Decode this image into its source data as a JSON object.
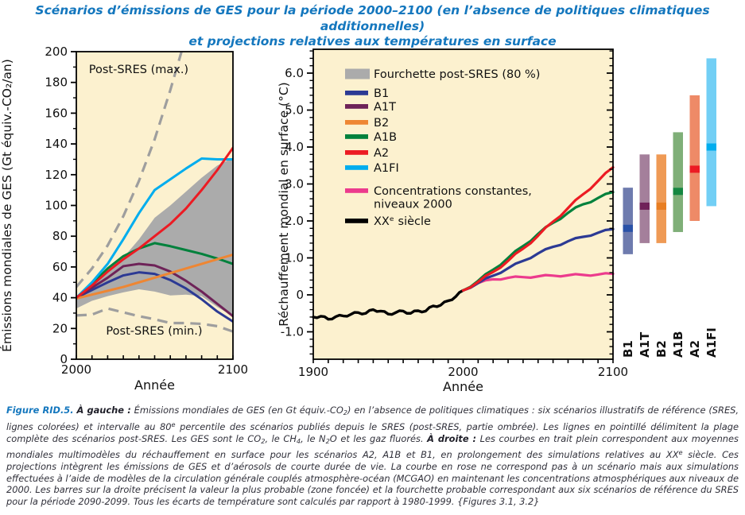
{
  "title": {
    "line1": "Scénarios d’émissions de GES pour la période 2000–2100 (en l’absence de politiques climatiques additionnelles)",
    "line2": "et projections relatives aux températures en surface"
  },
  "colors": {
    "title_blue": "#1477BE",
    "plot_background": "#FCF1CF",
    "band_gray": "#ABABAB",
    "dash_gray": "#9E9E9E",
    "b1": "#2C3A94",
    "a1t": "#6E2358",
    "b2": "#EE8633",
    "a1b": "#00813C",
    "a2": "#EC1B23",
    "a1fi": "#00ADEE",
    "pink": "#EC3B8D",
    "black": "#000000"
  },
  "chart_data": [
    {
      "id": "emissions",
      "type": "line",
      "xlabel": "Année",
      "ylabel": "Émissions mondiales de GES (Gt équiv.-CO₂/an)",
      "xlim": [
        2000,
        2100
      ],
      "ylim": [
        0,
        200
      ],
      "ytick_step": 20,
      "ytick_minor": 10,
      "xtick_minor": 10,
      "xtick_labels": [
        "2000",
        "2100"
      ],
      "x": [
        2000,
        2010,
        2020,
        2030,
        2040,
        2050,
        2060,
        2070,
        2080,
        2090,
        2100
      ],
      "band": {
        "name": "Fourchette post-SRES (80 %)",
        "color": "#ABABAB",
        "upper": [
          41,
          47.5,
          56,
          66,
          78,
          92,
          100,
          109,
          118,
          126,
          131
        ],
        "lower": [
          33,
          38,
          41,
          43.5,
          45.5,
          44,
          41.5,
          42,
          41,
          34,
          28
        ]
      },
      "series": [
        {
          "name": "Post-SRES (max.)",
          "color": "#9E9E9E",
          "dash": true,
          "x": [
            2000,
            2010,
            2020,
            2030,
            2040,
            2050,
            2060,
            2070
          ],
          "values": [
            47,
            59,
            74,
            93,
            116,
            143,
            175,
            210
          ]
        },
        {
          "name": "Post-SRES (min.)",
          "color": "#9E9E9E",
          "dash": true,
          "values": [
            28.5,
            29,
            33,
            30.5,
            28,
            26,
            23.5,
            23.5,
            23,
            21.5,
            18
          ]
        },
        {
          "name": "B1",
          "color": "#2C3A94",
          "values": [
            40,
            45,
            50,
            54.5,
            56.5,
            55.5,
            51.5,
            46,
            39,
            31,
            24.5
          ]
        },
        {
          "name": "A1T",
          "color": "#6E2358",
          "values": [
            40,
            46.5,
            53,
            60.5,
            62,
            61,
            57,
            51,
            44,
            36,
            28
          ]
        },
        {
          "name": "A1B",
          "color": "#00813C",
          "values": [
            40,
            49,
            59,
            67,
            72,
            75.5,
            73.5,
            71,
            68.5,
            65.5,
            62
          ]
        },
        {
          "name": "B2",
          "color": "#EE8633",
          "values": [
            39.5,
            42,
            44.5,
            47,
            50,
            53,
            56,
            59,
            62,
            65,
            68
          ]
        },
        {
          "name": "A1FI",
          "color": "#00ADEE",
          "values": [
            40,
            50,
            62,
            78,
            95,
            110,
            117,
            124,
            130.5,
            130,
            130
          ]
        },
        {
          "name": "A2",
          "color": "#EC1B23",
          "values": [
            40,
            48,
            57,
            65,
            72,
            80,
            88,
            98,
            110,
            123,
            137.5
          ]
        }
      ],
      "annotations": [
        {
          "text": "Post-SRES (max.)",
          "x": 2008,
          "y": 186
        },
        {
          "text": "Post-SRES (min.)",
          "x": 2019,
          "y": 16
        }
      ]
    },
    {
      "id": "temperature",
      "type": "line",
      "xlabel": "Année",
      "ylabel": "Réchauffement mondial en surface (°C)",
      "xlim": [
        1900,
        2100
      ],
      "ylim": [
        -1.7,
        6.6
      ],
      "ytick_step": 1.0,
      "ytick_minor": 0.2,
      "xtick_minor": 10,
      "xtick_labels": [
        "1900",
        "2000",
        "2100"
      ],
      "series": [
        {
          "name": "XXᵉ siècle",
          "color": "#000000",
          "wiggle": 0.03,
          "x": [
            1900,
            1905,
            1910,
            1915,
            1920,
            1925,
            1930,
            1935,
            1940,
            1945,
            1950,
            1955,
            1960,
            1965,
            1970,
            1975,
            1980,
            1985,
            1990,
            1995,
            2000
          ],
          "values": [
            -0.6,
            -0.58,
            -0.66,
            -0.59,
            -0.57,
            -0.53,
            -0.48,
            -0.5,
            -0.4,
            -0.44,
            -0.52,
            -0.48,
            -0.44,
            -0.5,
            -0.43,
            -0.44,
            -0.3,
            -0.28,
            -0.16,
            -0.05,
            0.12
          ]
        },
        {
          "name": "Concentrations constantes, niveaux 2000",
          "color": "#EC3B8D",
          "wiggle": 0.025,
          "x": [
            2000,
            2010,
            2020,
            2030,
            2040,
            2050,
            2060,
            2070,
            2080,
            2090,
            2100
          ],
          "values": [
            0.12,
            0.32,
            0.42,
            0.46,
            0.48,
            0.5,
            0.52,
            0.53,
            0.54,
            0.55,
            0.57
          ]
        },
        {
          "name": "B1",
          "color": "#2C3A94",
          "wiggle": 0.025,
          "x": [
            2000,
            2010,
            2020,
            2030,
            2040,
            2050,
            2060,
            2070,
            2080,
            2090,
            2100
          ],
          "values": [
            0.12,
            0.32,
            0.52,
            0.72,
            0.92,
            1.12,
            1.3,
            1.45,
            1.57,
            1.68,
            1.78
          ]
        },
        {
          "name": "A1B",
          "color": "#00813C",
          "wiggle": 0.03,
          "x": [
            2000,
            2010,
            2020,
            2030,
            2040,
            2050,
            2060,
            2070,
            2080,
            2090,
            2100
          ],
          "values": [
            0.12,
            0.38,
            0.68,
            1.0,
            1.32,
            1.65,
            1.95,
            2.22,
            2.45,
            2.62,
            2.78
          ]
        },
        {
          "name": "A2",
          "color": "#EC1B23",
          "wiggle": 0.03,
          "x": [
            2000,
            2010,
            2020,
            2030,
            2040,
            2050,
            2060,
            2070,
            2080,
            2090,
            2100
          ],
          "values": [
            0.12,
            0.35,
            0.62,
            0.92,
            1.25,
            1.6,
            1.98,
            2.35,
            2.72,
            3.08,
            3.45
          ]
        }
      ],
      "legend_items": [
        {
          "swatch": "patch",
          "color": "#ABABAB",
          "label": "Fourchette post-SRES (80 %)"
        },
        {
          "swatch": "line",
          "color": "#2C3A94",
          "label": "B1"
        },
        {
          "swatch": "line",
          "color": "#6E2358",
          "label": "A1T"
        },
        {
          "swatch": "line",
          "color": "#EE8633",
          "label": "B2"
        },
        {
          "swatch": "line",
          "color": "#00813C",
          "label": "A1B"
        },
        {
          "swatch": "line",
          "color": "#EC1B23",
          "label": "A2"
        },
        {
          "swatch": "line",
          "color": "#00ADEE",
          "label": "A1FI"
        },
        {
          "swatch": "line",
          "color": "#EC3B8D",
          "label": "Concentrations constantes,",
          "label2": "niveaux 2000"
        },
        {
          "swatch": "line",
          "color": "#000000",
          "label": "XXᵉ siècle"
        }
      ]
    },
    {
      "id": "temp-range-bars",
      "type": "bar-range",
      "bars": [
        {
          "label": "B1",
          "lo": 1.1,
          "hi": 2.9,
          "best": 1.8,
          "light": "#6E7BAE",
          "dark": "#2A52A8",
          "label_color": "#2C3A94"
        },
        {
          "label": "A1T",
          "lo": 1.4,
          "hi": 3.8,
          "best": 2.4,
          "light": "#A47F9B",
          "dark": "#6F2159",
          "label_color": "#6E2358"
        },
        {
          "label": "B2",
          "lo": 1.4,
          "hi": 3.8,
          "best": 2.4,
          "light": "#EF9A55",
          "dark": "#E87E22",
          "label_color": "#EE8633"
        },
        {
          "label": "A1B",
          "lo": 1.7,
          "hi": 4.4,
          "best": 2.8,
          "light": "#7FAF78",
          "dark": "#158741",
          "label_color": "#00813C"
        },
        {
          "label": "A2",
          "lo": 2.0,
          "hi": 5.4,
          "best": 3.4,
          "light": "#EE8A67",
          "dark": "#EC1B23",
          "label_color": "#EC1B23"
        },
        {
          "label": "A1FI",
          "lo": 2.4,
          "hi": 6.4,
          "best": 4.0,
          "light": "#72CFF5",
          "dark": "#00ADEE",
          "label_color": "#00ADEE"
        }
      ]
    }
  ],
  "caption": {
    "segments": [
      {
        "t": "Figure RID.5.",
        "s": "fig"
      },
      {
        "t": " ",
        "s": "i"
      },
      {
        "t": "À gauche :",
        "s": "b"
      },
      {
        "t": " Émissions mondiales de GES (en Gt équiv.-CO",
        "s": "i"
      },
      {
        "t": "2",
        "s": "sub"
      },
      {
        "t": ") en l’absence de politiques climatiques : six scénarios illustratifs de référence (SRES, lignes colorées) et intervalle au 80",
        "s": "i"
      },
      {
        "t": "e",
        "s": "sup"
      },
      {
        "t": " percentile des scénarios publiés depuis le SRES (post-SRES, partie ombrée). Les lignes en pointillé délimitent la plage complète des scénarios post-SRES. Les GES sont le CO",
        "s": "i"
      },
      {
        "t": "2",
        "s": "sub"
      },
      {
        "t": ", le CH",
        "s": "i"
      },
      {
        "t": "4",
        "s": "sub"
      },
      {
        "t": ", le N",
        "s": "i"
      },
      {
        "t": "2",
        "s": "sub"
      },
      {
        "t": "O et les gaz fluorés. ",
        "s": "i"
      },
      {
        "t": "À droite :",
        "s": "b"
      },
      {
        "t": " Les courbes en trait plein correspondent aux moyennes mondiales multimodèles du réchauffement en surface pour les scénarios A2, A1B et B1, en prolongement des simulations relatives au XX",
        "s": "i"
      },
      {
        "t": "e",
        "s": "sup"
      },
      {
        "t": " siècle. Ces projections intègrent les émissions de GES et d’aérosols de courte durée de vie. La courbe en rose ne correspond pas à un scénario mais aux simulations effectuées à l’aide de modèles de la circulation générale couplés atmosphère-océan (MCGAO) en maintenant les concentrations atmosphériques aux niveaux de 2000. Les barres sur la droite précisent la valeur la plus probable (zone foncée) et la fourchette probable correspondant aux six scénarios de référence du SRES pour la période 2090-2099. Tous les écarts de température sont calculés par rapport à 1980-1999. {Figures 3.1, 3.2}",
        "s": "i"
      }
    ]
  }
}
